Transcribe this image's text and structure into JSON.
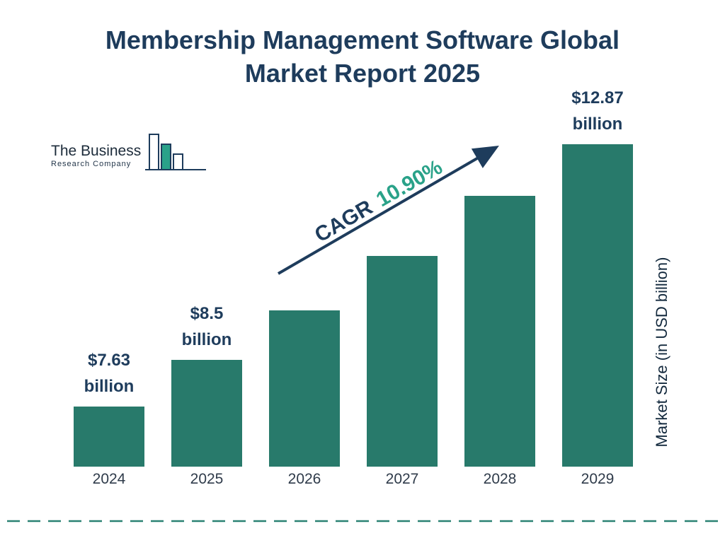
{
  "title": {
    "line1": "Membership Management Software Global",
    "line2": "Market Report 2025"
  },
  "logo": {
    "name_line1": "The Business",
    "name_line2": "Research Company"
  },
  "cagr_label": {
    "prefix": "CAGR",
    "value": "10.90%"
  },
  "y_axis_label": "Market Size (in USD billion)",
  "colors": {
    "bar": "#287a6b",
    "navy": "#1e3c5c",
    "cagr_green": "#2aa289",
    "dashed_line": "#2a8273"
  },
  "chart_data": {
    "type": "bar",
    "title": "Membership Management Software Global Market Report 2025",
    "categories": [
      "2024",
      "2025",
      "2026",
      "2027",
      "2028",
      "2029"
    ],
    "values": [
      7.63,
      8.5,
      9.43,
      10.45,
      11.59,
      12.87
    ],
    "value_labels": [
      {
        "category": "2024",
        "line1": "$7.63",
        "line2": "billion"
      },
      {
        "category": "2025",
        "line1": "$8.5",
        "line2": "billion"
      },
      {
        "category": "2029",
        "line1": "$12.87",
        "line2": "billion"
      }
    ],
    "cagr": "10.90%",
    "xlabel": "",
    "ylabel": "Market Size (in USD billion)",
    "y_baseline": 6.5,
    "grid": false,
    "legend": false
  }
}
